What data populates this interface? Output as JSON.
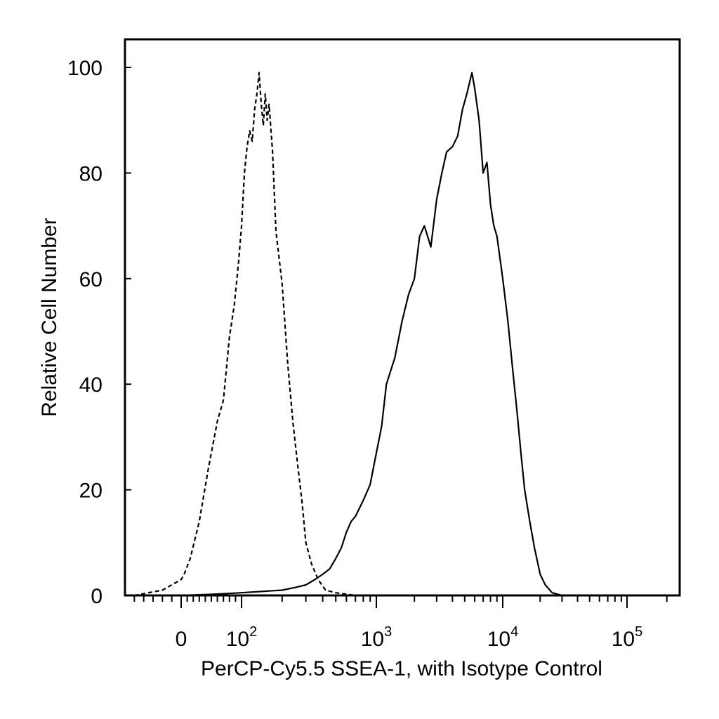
{
  "chart_data": {
    "type": "line",
    "xlabel": "PerCP-Cy5.5 SSEA-1, with Isotype Control",
    "ylabel": "Relative Cell Number",
    "x_scale": "biexponential",
    "xlim": [
      -60,
      250000
    ],
    "ylim": [
      0,
      105
    ],
    "yticks": [
      {
        "value": 0,
        "label": "0"
      },
      {
        "value": 20,
        "label": "20"
      },
      {
        "value": 40,
        "label": "40"
      },
      {
        "value": 60,
        "label": "60"
      },
      {
        "value": 80,
        "label": "80"
      },
      {
        "value": 100,
        "label": "100"
      }
    ],
    "xticks": [
      {
        "value": 0,
        "base": "0",
        "exp": ""
      },
      {
        "value": 100,
        "base": "10",
        "exp": "2"
      },
      {
        "value": 1000,
        "base": "10",
        "exp": "3"
      },
      {
        "value": 10000,
        "base": "10",
        "exp": "4"
      },
      {
        "value": 100000,
        "base": "10",
        "exp": "5"
      }
    ],
    "grid": false,
    "series": [
      {
        "style": "dashed",
        "x": [
          -50,
          -20,
          0,
          5,
          15,
          30,
          45,
          60,
          70,
          80,
          88,
          95,
          100,
          105,
          110,
          115,
          120,
          125,
          130,
          135,
          140,
          145,
          150,
          155,
          160,
          170,
          180,
          200,
          220,
          240,
          260,
          280,
          300,
          330,
          370,
          420,
          500,
          700,
          1000,
          3000,
          10000,
          30000,
          200000
        ],
        "y": [
          0,
          1,
          3,
          4,
          7,
          14,
          24,
          33,
          37,
          49,
          55,
          63,
          70,
          80,
          85,
          88,
          86,
          92,
          95,
          99,
          93,
          89,
          95,
          90,
          93,
          84,
          69,
          59,
          44,
          33,
          25,
          18,
          10,
          6,
          3,
          1,
          0.5,
          0,
          0,
          0,
          0,
          0,
          0
        ]
      },
      {
        "style": "solid",
        "x": [
          -50,
          0,
          50,
          100,
          150,
          200,
          250,
          300,
          350,
          400,
          450,
          500,
          550,
          600,
          650,
          700,
          800,
          900,
          1000,
          1100,
          1200,
          1400,
          1600,
          1800,
          2000,
          2200,
          2400,
          2700,
          3000,
          3300,
          3600,
          4000,
          4400,
          4800,
          5200,
          5700,
          6000,
          6500,
          7000,
          7500,
          8000,
          8500,
          9000,
          10000,
          11000,
          12000,
          13000,
          14000,
          15000,
          16500,
          18000,
          20000,
          22000,
          25000,
          30000,
          40000,
          100000,
          200000
        ],
        "y": [
          0,
          0,
          0.2,
          0.5,
          0.8,
          1,
          1.5,
          2,
          3,
          4,
          5,
          7,
          9,
          12,
          14,
          15,
          18,
          21,
          27,
          32,
          40,
          45,
          52,
          57,
          60,
          68,
          70,
          66,
          75,
          80,
          84,
          85,
          87,
          92,
          95,
          99,
          96,
          90,
          80,
          82,
          74,
          70,
          68,
          60,
          52,
          43,
          35,
          27,
          20,
          14,
          9,
          4,
          2,
          0.5,
          0,
          0,
          0,
          0
        ]
      }
    ]
  }
}
